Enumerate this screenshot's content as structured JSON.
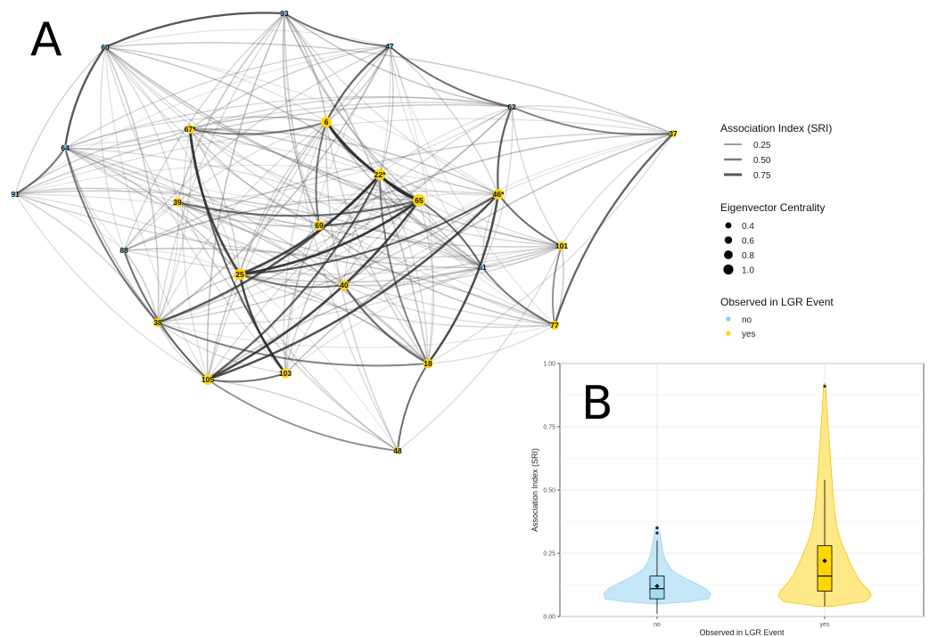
{
  "panels": {
    "a_letter": "A",
    "b_letter": "B"
  },
  "colors": {
    "no": "#87ceeb",
    "yes": "#ffd700",
    "no_fill": "#bfe4f7",
    "yes_fill": "#ffe57a",
    "edge": "#555555"
  },
  "legend": {
    "edge_title": "Association Index (SRI)",
    "edge_items": [
      {
        "label": "0.25",
        "value": 0.25
      },
      {
        "label": "0.50",
        "value": 0.5
      },
      {
        "label": "0.75",
        "value": 0.75
      }
    ],
    "size_title": "Eigenvector Centrality",
    "size_items": [
      {
        "label": "0.4",
        "value": 0.4
      },
      {
        "label": "0.6",
        "value": 0.6
      },
      {
        "label": "0.8",
        "value": 0.8
      },
      {
        "label": "1.0",
        "value": 1.0
      }
    ],
    "color_title": "Observed in LGR Event",
    "color_items": [
      {
        "label": "no",
        "key": "no"
      },
      {
        "label": "yes",
        "key": "yes"
      }
    ]
  },
  "chart_data": [
    {
      "type": "network",
      "nodes": [
        {
          "id": "33",
          "label": "33",
          "group": "no"
        },
        {
          "id": "47",
          "label": "47",
          "group": "no"
        },
        {
          "id": "60",
          "label": "60",
          "group": "no"
        },
        {
          "id": "62",
          "label": "62",
          "group": "no"
        },
        {
          "id": "64",
          "label": "64",
          "group": "no"
        },
        {
          "id": "91",
          "label": "91",
          "group": "no"
        },
        {
          "id": "88",
          "label": "88",
          "group": "no"
        },
        {
          "id": "61",
          "label": "61",
          "group": "no"
        },
        {
          "id": "6",
          "label": "6",
          "group": "yes"
        },
        {
          "id": "67",
          "label": "67*",
          "group": "yes"
        },
        {
          "id": "37",
          "label": "37",
          "group": "yes"
        },
        {
          "id": "22",
          "label": "22*",
          "group": "yes"
        },
        {
          "id": "65",
          "label": "65",
          "group": "yes"
        },
        {
          "id": "46",
          "label": "46*",
          "group": "yes"
        },
        {
          "id": "39",
          "label": "39",
          "group": "yes"
        },
        {
          "id": "69",
          "label": "69",
          "group": "yes"
        },
        {
          "id": "101",
          "label": "101",
          "group": "yes"
        },
        {
          "id": "25",
          "label": "25",
          "group": "yes"
        },
        {
          "id": "40",
          "label": "40",
          "group": "yes"
        },
        {
          "id": "38",
          "label": "38",
          "group": "yes"
        },
        {
          "id": "77",
          "label": "77",
          "group": "yes"
        },
        {
          "id": "18",
          "label": "18",
          "group": "yes"
        },
        {
          "id": "105",
          "label": "105",
          "group": "yes"
        },
        {
          "id": "103",
          "label": "103",
          "group": "yes"
        },
        {
          "id": "48",
          "label": "48",
          "group": "yes"
        }
      ],
      "strong_edges": [
        [
          "22",
          "65",
          0.75
        ],
        [
          "6",
          "65",
          0.7
        ],
        [
          "25",
          "65",
          0.7
        ],
        [
          "25",
          "22",
          0.65
        ],
        [
          "67",
          "25",
          0.65
        ],
        [
          "105",
          "65",
          0.65
        ],
        [
          "105",
          "46",
          0.6
        ],
        [
          "25",
          "103",
          0.6
        ],
        [
          "18",
          "46",
          0.6
        ],
        [
          "38",
          "22",
          0.55
        ],
        [
          "60",
          "64",
          0.55
        ],
        [
          "33",
          "60",
          0.5
        ],
        [
          "47",
          "6",
          0.5
        ],
        [
          "6",
          "22",
          0.5
        ],
        [
          "62",
          "46",
          0.5
        ],
        [
          "37",
          "77",
          0.5
        ],
        [
          "105",
          "22",
          0.5
        ],
        [
          "67",
          "103",
          0.45
        ],
        [
          "69",
          "65",
          0.45
        ],
        [
          "39",
          "65",
          0.45
        ],
        [
          "25",
          "46",
          0.45
        ],
        [
          "40",
          "18",
          0.45
        ],
        [
          "64",
          "38",
          0.4
        ],
        [
          "91",
          "64",
          0.4
        ],
        [
          "88",
          "105",
          0.4
        ],
        [
          "61",
          "65",
          0.4
        ],
        [
          "46",
          "101",
          0.4
        ],
        [
          "47",
          "62",
          0.4
        ],
        [
          "6",
          "69",
          0.4
        ],
        [
          "105",
          "103",
          0.4
        ],
        [
          "18",
          "48",
          0.4
        ],
        [
          "62",
          "37",
          0.35
        ],
        [
          "33",
          "47",
          0.35
        ],
        [
          "67",
          "6",
          0.35
        ],
        [
          "38",
          "18",
          0.35
        ],
        [
          "25",
          "40",
          0.35
        ],
        [
          "22",
          "18",
          0.35
        ],
        [
          "61",
          "77",
          0.35
        ],
        [
          "101",
          "77",
          0.3
        ],
        [
          "105",
          "48",
          0.3
        ]
      ]
    },
    {
      "type": "violin+box",
      "xlabel": "Observed in LGR Event",
      "ylabel": "Association Index (SRI)",
      "ylim": [
        0,
        1
      ],
      "yticks": [
        "0.00",
        "0.25",
        "0.50",
        "0.75",
        "1.00"
      ],
      "categories": [
        "no",
        "yes"
      ],
      "series": [
        {
          "name": "no",
          "box": {
            "min": 0.01,
            "q1": 0.07,
            "median": 0.11,
            "q3": 0.16,
            "max": 0.3,
            "mean": 0.12
          },
          "outliers": [
            0.33,
            0.35
          ],
          "violin_range": [
            0.05,
            0.36
          ]
        },
        {
          "name": "yes",
          "box": {
            "min": 0.04,
            "q1": 0.1,
            "median": 0.16,
            "q3": 0.28,
            "max": 0.54,
            "mean": 0.22
          },
          "outliers": [
            0.91
          ],
          "violin_range": [
            0.04,
            0.92
          ]
        }
      ],
      "grid": true
    }
  ]
}
